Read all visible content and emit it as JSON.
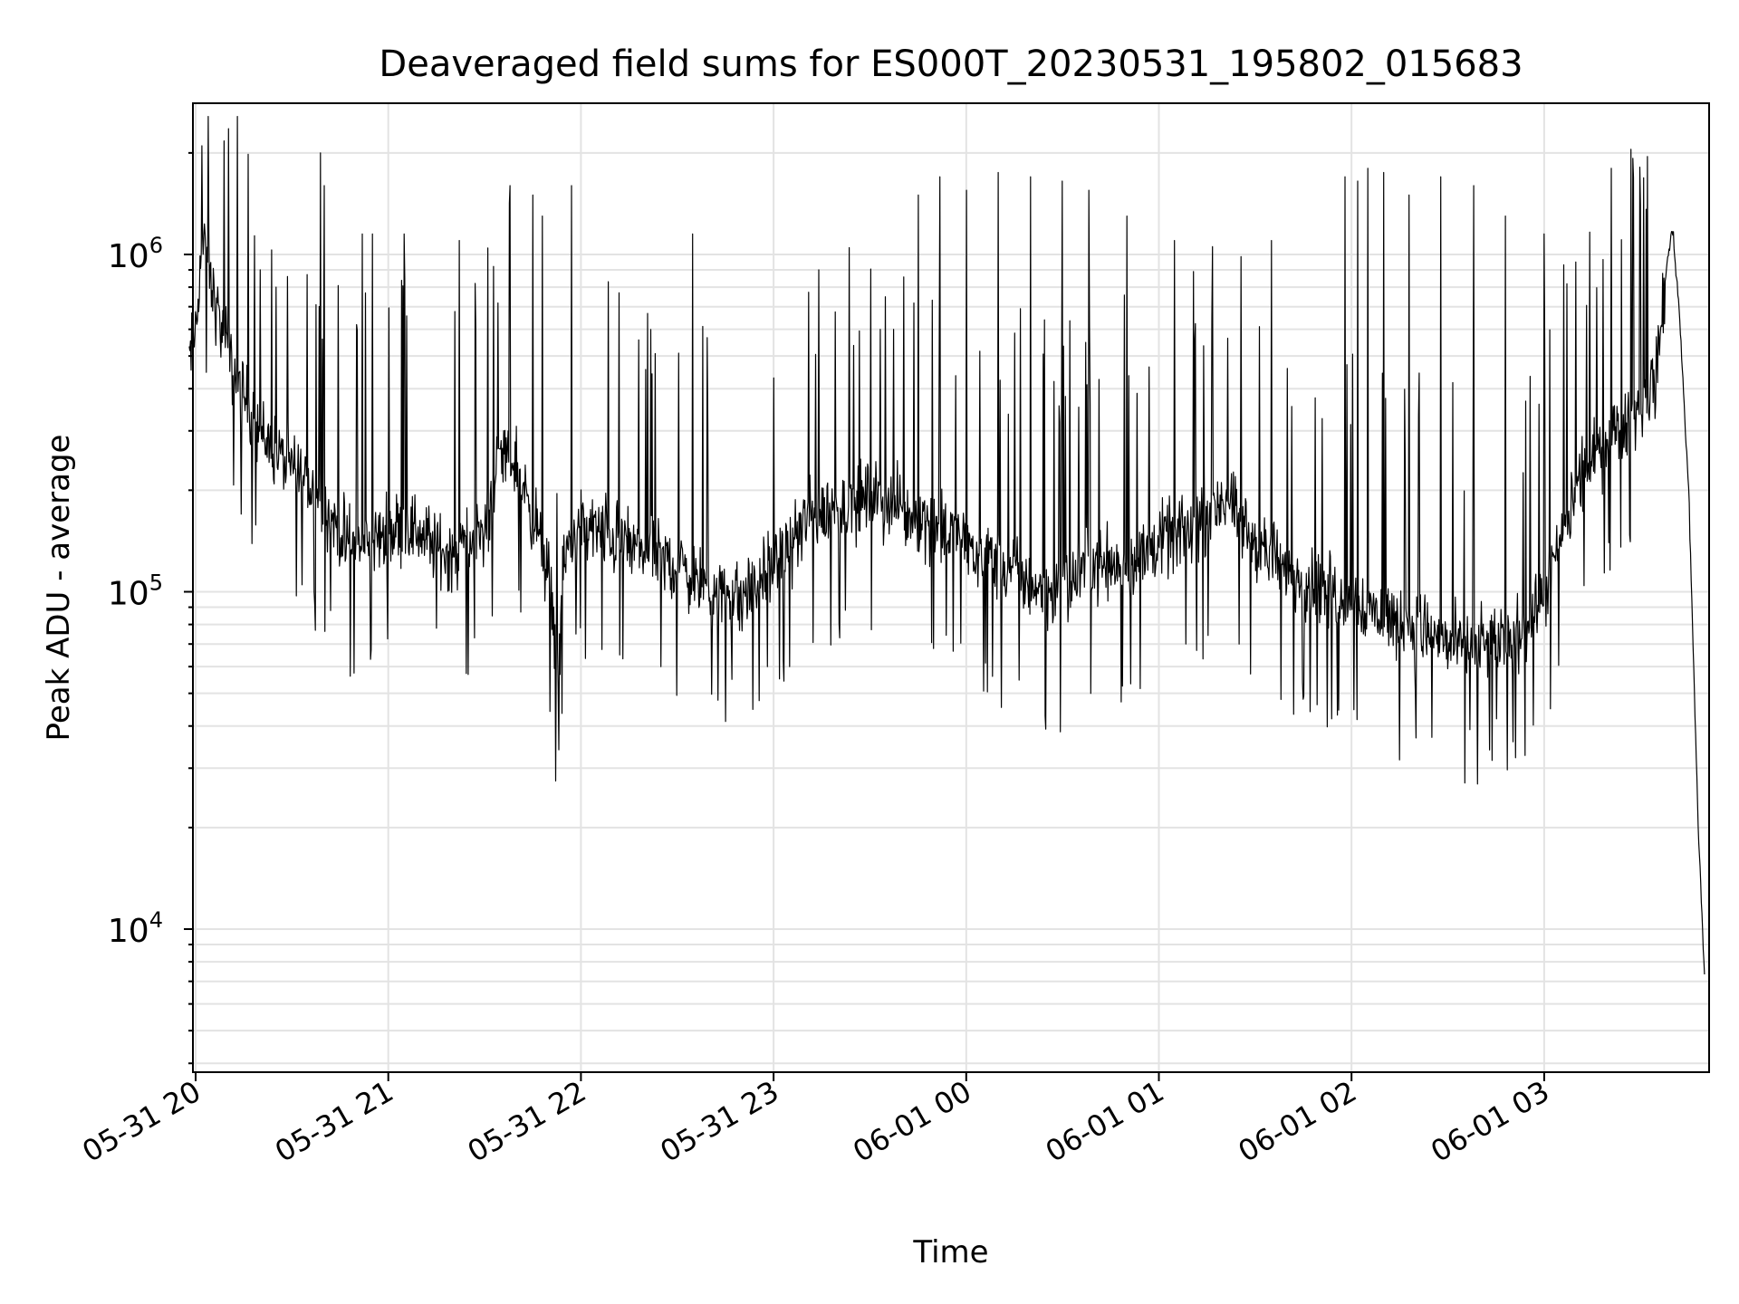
{
  "chart_data": {
    "type": "line",
    "title": "Deaveraged field sums for ES000T_20230531_195802_015683",
    "xlabel": "Time",
    "ylabel": "Peak ADU - average",
    "x_ticks": [
      "05-31 20",
      "05-31 21",
      "05-31 22",
      "05-31 23",
      "06-01 00",
      "06-01 01",
      "06-01 02",
      "06-01 03"
    ],
    "y_ticks": [
      {
        "base": "10",
        "exp": "4"
      },
      {
        "base": "10",
        "exp": "5"
      },
      {
        "base": "10",
        "exp": "6"
      }
    ],
    "y_scale": "log",
    "ylim": [
      4000,
      2700000
    ],
    "xlim": [
      "2023-05-31 19:58",
      "2023-06-01 03:50"
    ],
    "grid": true,
    "line_color": "#000000",
    "grid_color": "#e3e3e3",
    "series": [
      {
        "x": [
          "2023-05-31 19:58",
          "2023-05-31 20:00",
          "2023-05-31 20:02",
          "2023-05-31 20:05",
          "2023-05-31 20:10",
          "2023-05-31 20:15",
          "2023-05-31 20:20",
          "2023-05-31 20:25",
          "2023-05-31 20:30",
          "2023-05-31 20:35",
          "2023-05-31 20:40",
          "2023-05-31 20:45",
          "2023-05-31 20:50",
          "2023-05-31 20:55",
          "2023-05-31 21:00",
          "2023-05-31 21:05",
          "2023-05-31 21:10",
          "2023-05-31 21:15",
          "2023-05-31 21:20",
          "2023-05-31 21:25",
          "2023-05-31 21:30",
          "2023-05-31 21:35",
          "2023-05-31 21:40",
          "2023-05-31 21:45",
          "2023-05-31 21:50",
          "2023-05-31 21:53",
          "2023-05-31 21:55",
          "2023-05-31 22:00",
          "2023-05-31 22:10",
          "2023-05-31 22:20",
          "2023-05-31 22:30",
          "2023-05-31 22:40",
          "2023-05-31 22:50",
          "2023-05-31 23:00",
          "2023-05-31 23:10",
          "2023-05-31 23:20",
          "2023-05-31 23:30",
          "2023-05-31 23:40",
          "2023-05-31 23:50",
          "2023-06-01 00:00",
          "2023-06-01 00:10",
          "2023-06-01 00:20",
          "2023-06-01 00:30",
          "2023-06-01 00:40",
          "2023-06-01 00:50",
          "2023-06-01 01:00",
          "2023-06-01 01:10",
          "2023-06-01 01:20",
          "2023-06-01 01:30",
          "2023-06-01 01:40",
          "2023-06-01 01:50",
          "2023-06-01 02:00",
          "2023-06-01 02:10",
          "2023-06-01 02:20",
          "2023-06-01 02:30",
          "2023-06-01 02:40",
          "2023-06-01 02:50",
          "2023-06-01 03:00",
          "2023-06-01 03:10",
          "2023-06-01 03:20",
          "2023-06-01 03:25",
          "2023-06-01 03:30",
          "2023-06-01 03:35",
          "2023-06-01 03:38",
          "2023-06-01 03:40",
          "2023-06-01 03:42",
          "2023-06-01 03:45",
          "2023-06-01 03:48",
          "2023-06-01 03:50"
        ],
        "y": [
          480000,
          600000,
          1100000,
          800000,
          500000,
          380000,
          300000,
          260000,
          230000,
          210000,
          180000,
          150000,
          135000,
          140000,
          150000,
          160000,
          150000,
          135000,
          130000,
          140000,
          150000,
          260000,
          240000,
          170000,
          110000,
          60000,
          130000,
          160000,
          145000,
          130000,
          120000,
          100000,
          95000,
          120000,
          160000,
          180000,
          190000,
          175000,
          160000,
          140000,
          120000,
          105000,
          100000,
          125000,
          120000,
          140000,
          150000,
          190000,
          140000,
          115000,
          105000,
          95000,
          85000,
          80000,
          70000,
          68000,
          72000,
          95000,
          200000,
          290000,
          320000,
          350000,
          440000,
          900000,
          1200000,
          700000,
          200000,
          20000,
          7000
        ],
        "spikes": [
          [
            "2023-05-31 20:02",
            2100000
          ],
          [
            "2023-05-31 20:20",
            900000
          ],
          [
            "2023-05-31 20:25",
            800000
          ],
          [
            "2023-05-31 20:39",
            2000000
          ],
          [
            "2023-05-31 20:40",
            1600000
          ],
          [
            "2023-05-31 20:52",
            1150000
          ],
          [
            "2023-05-31 20:55",
            1150000
          ],
          [
            "2023-05-31 21:05",
            1150000
          ],
          [
            "2023-05-31 21:15",
            1100000
          ],
          [
            "2023-05-31 21:22",
            1100000
          ],
          [
            "2023-05-31 21:38",
            1600000
          ],
          [
            "2023-05-31 21:45",
            1500000
          ],
          [
            "2023-05-31 21:48",
            1300000
          ],
          [
            "2023-05-31 21:57",
            1600000
          ],
          [
            "2023-05-31 22:25",
            1200000
          ],
          [
            "2023-05-31 22:35",
            1150000
          ],
          [
            "2023-05-31 23:14",
            900000
          ],
          [
            "2023-05-31 23:45",
            1500000
          ],
          [
            "2023-05-31 23:52",
            1700000
          ],
          [
            "2023-06-01 00:00",
            1550000
          ],
          [
            "2023-06-01 00:10",
            1750000
          ],
          [
            "2023-06-01 00:20",
            1700000
          ],
          [
            "2023-06-01 00:30",
            1650000
          ],
          [
            "2023-06-01 00:38",
            1550000
          ],
          [
            "2023-06-01 00:50",
            1300000
          ],
          [
            "2023-06-01 01:05",
            1100000
          ],
          [
            "2023-06-01 01:25",
            1200000
          ],
          [
            "2023-06-01 01:35",
            1100000
          ],
          [
            "2023-06-01 01:45",
            1300000
          ],
          [
            "2023-06-01 01:58",
            1700000
          ],
          [
            "2023-06-01 02:02",
            1650000
          ],
          [
            "2023-06-01 02:05",
            1800000
          ],
          [
            "2023-06-01 02:10",
            1750000
          ],
          [
            "2023-06-01 02:18",
            1500000
          ],
          [
            "2023-06-01 02:28",
            1700000
          ],
          [
            "2023-06-01 02:38",
            1600000
          ],
          [
            "2023-06-01 02:48",
            1300000
          ],
          [
            "2023-06-01 03:00",
            1150000
          ],
          [
            "2023-06-01 03:10",
            950000
          ],
          [
            "2023-06-01 03:21",
            1800000
          ]
        ],
        "dips": [
          [
            "2023-05-31 20:14",
            170000
          ],
          [
            "2023-05-31 20:37",
            100000
          ],
          [
            "2023-05-31 20:42",
            88000
          ],
          [
            "2023-05-31 21:15",
            78000
          ],
          [
            "2023-05-31 21:27",
            73000
          ],
          [
            "2023-05-31 21:53",
            34000
          ],
          [
            "2023-05-31 22:12",
            65000
          ],
          [
            "2023-05-31 22:25",
            60000
          ],
          [
            "2023-05-31 22:47",
            55000
          ],
          [
            "2023-05-31 22:58",
            60000
          ],
          [
            "2023-05-31 23:05",
            60000
          ],
          [
            "2023-06-01 01:25",
            70000
          ],
          [
            "2023-06-01 01:45",
            48000
          ],
          [
            "2023-06-01 02:20",
            50000
          ],
          [
            "2023-06-01 02:25",
            37000
          ],
          [
            "2023-06-01 02:37",
            39000
          ],
          [
            "2023-06-01 02:45",
            42000
          ],
          [
            "2023-06-01 03:02",
            45000
          ]
        ]
      }
    ]
  }
}
